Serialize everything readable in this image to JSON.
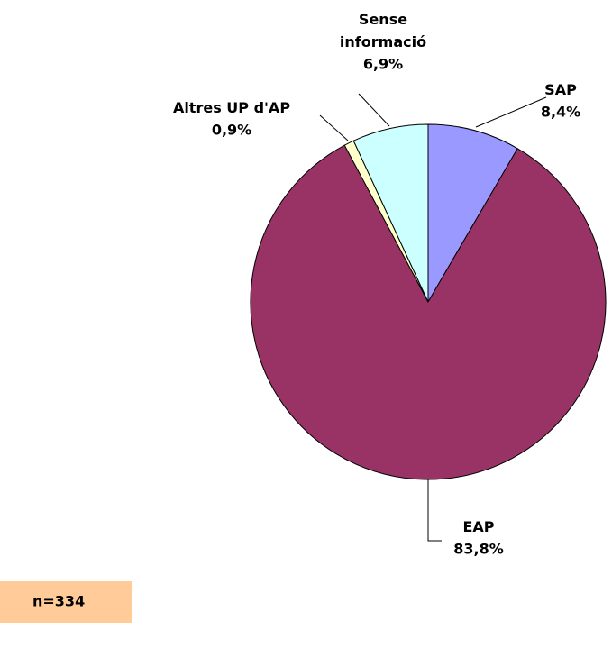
{
  "chart_data": {
    "type": "pie",
    "categories": [
      "SAP",
      "EAP",
      "Altres UP d'AP",
      "Sense\ninformació"
    ],
    "values": [
      8.4,
      83.8,
      0.9,
      6.9
    ],
    "value_labels": [
      "8,4%",
      "83,8%",
      "0,9%",
      "6,9%"
    ],
    "colors": [
      "#9999ff",
      "#993366",
      "#ffffcc",
      "#ccffff"
    ],
    "note": "n=334"
  }
}
